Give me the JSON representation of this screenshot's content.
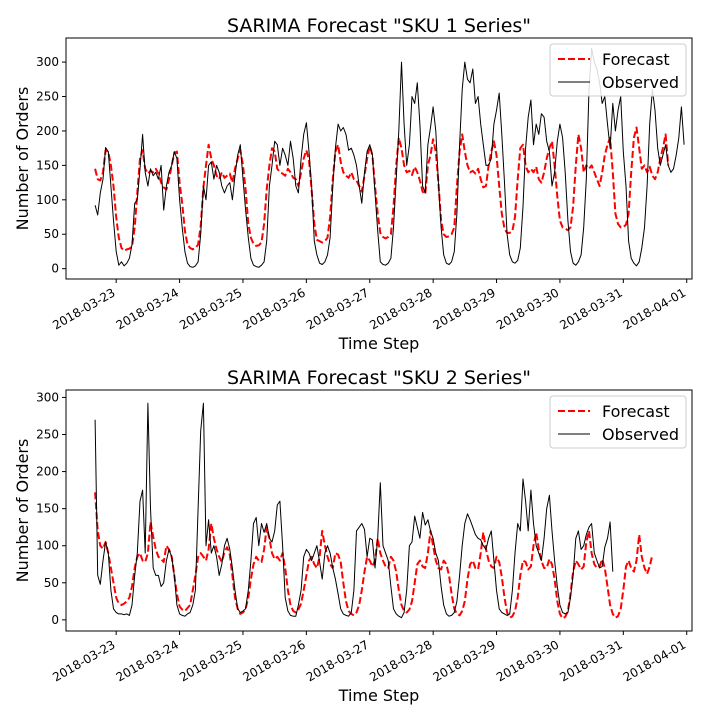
{
  "chart_data": [
    {
      "type": "line",
      "title": "SARIMA Forecast \"SKU 1 Series\"",
      "xlabel": "Time Step",
      "ylabel": "Number of Orders",
      "x_start": "2018-03-22T16:00",
      "x_step_hours": 1,
      "xlim": [
        "2018-03-22T05:00",
        "2018-04-01T02:00"
      ],
      "ylim": [
        -15,
        335
      ],
      "xticks": [
        "2018-03-23",
        "2018-03-24",
        "2018-03-25",
        "2018-03-26",
        "2018-03-27",
        "2018-03-28",
        "2018-03-29",
        "2018-03-30",
        "2018-03-31",
        "2018-04-01"
      ],
      "yticks": [
        0,
        50,
        100,
        150,
        200,
        250,
        300
      ],
      "legend": {
        "position": "top-right"
      },
      "series": [
        {
          "name": "Forecast",
          "color": "#ff0000",
          "style": "dashed",
          "values": [
            145,
            130,
            128,
            140,
            172,
            170,
            150,
            120,
            75,
            45,
            30,
            26,
            28,
            29,
            32,
            60,
            110,
            160,
            172,
            145,
            138,
            142,
            140,
            145,
            138,
            125,
            118,
            115,
            130,
            150,
            168,
            170,
            125,
            95,
            55,
            35,
            30,
            28,
            30,
            35,
            62,
            118,
            150,
            180,
            160,
            150,
            135,
            130,
            140,
            132,
            135,
            138,
            125,
            145,
            160,
            172,
            150,
            115,
            65,
            45,
            36,
            33,
            34,
            38,
            65,
            115,
            150,
            175,
            170,
            145,
            140,
            138,
            135,
            145,
            140,
            132,
            130,
            120,
            140,
            160,
            172,
            158,
            115,
            65,
            42,
            40,
            38,
            40,
            45,
            75,
            130,
            170,
            180,
            155,
            140,
            135,
            132,
            140,
            130,
            128,
            120,
            112,
            135,
            160,
            178,
            165,
            120,
            80,
            52,
            46,
            44,
            46,
            50,
            90,
            150,
            190,
            175,
            150,
            140,
            142,
            136,
            148,
            140,
            128,
            112,
            108,
            150,
            165,
            188,
            170,
            125,
            70,
            50,
            46,
            47,
            50,
            60,
            120,
            170,
            195,
            170,
            150,
            140,
            142,
            138,
            145,
            130,
            118,
            120,
            150,
            170,
            185,
            165,
            120,
            80,
            58,
            52,
            52,
            55,
            75,
            130,
            175,
            180,
            150,
            140,
            145,
            140,
            148,
            130,
            125,
            140,
            160,
            175,
            185,
            150,
            105,
            70,
            60,
            58,
            56,
            60,
            90,
            150,
            195,
            175,
            140,
            150,
            145,
            150,
            140,
            130,
            120,
            140,
            165,
            180,
            190,
            140,
            80,
            65,
            60,
            60,
            64,
            80,
            140,
            190,
            205,
            175,
            145,
            150,
            140,
            148,
            135,
            130,
            140,
            160,
            175,
            195,
            150
          ]
        },
        {
          "name": "Observed",
          "color": "#000000",
          "style": "solid",
          "values": [
            92,
            78,
            110,
            130,
            176,
            170,
            120,
            70,
            25,
            5,
            10,
            4,
            8,
            15,
            35,
            95,
            100,
            145,
            195,
            140,
            120,
            145,
            135,
            140,
            130,
            150,
            85,
            120,
            140,
            150,
            170,
            160,
            100,
            60,
            25,
            8,
            3,
            2,
            4,
            10,
            50,
            120,
            100,
            150,
            155,
            130,
            150,
            140,
            120,
            110,
            120,
            125,
            100,
            135,
            165,
            180,
            130,
            85,
            45,
            15,
            5,
            3,
            2,
            5,
            10,
            40,
            120,
            150,
            185,
            180,
            150,
            175,
            165,
            150,
            185,
            160,
            120,
            110,
            160,
            195,
            212,
            170,
            120,
            40,
            20,
            8,
            6,
            10,
            20,
            45,
            120,
            175,
            210,
            200,
            205,
            195,
            172,
            175,
            165,
            150,
            120,
            95,
            140,
            170,
            180,
            165,
            110,
            55,
            10,
            6,
            5,
            8,
            15,
            60,
            130,
            200,
            300,
            210,
            150,
            180,
            250,
            240,
            270,
            210,
            120,
            110,
            180,
            205,
            235,
            200,
            125,
            60,
            20,
            8,
            6,
            10,
            25,
            80,
            180,
            260,
            300,
            275,
            270,
            290,
            240,
            250,
            210,
            180,
            150,
            150,
            160,
            210,
            230,
            255,
            195,
            125,
            50,
            20,
            10,
            8,
            12,
            30,
            90,
            175,
            220,
            245,
            180,
            210,
            195,
            225,
            220,
            185,
            170,
            120,
            140,
            185,
            210,
            190,
            140,
            70,
            25,
            8,
            5,
            10,
            20,
            60,
            130,
            260,
            320,
            300,
            290,
            270,
            240,
            250,
            210,
            175,
            240,
            200,
            230,
            250,
            170,
            120,
            40,
            15,
            8,
            4,
            10,
            30,
            60,
            120,
            210,
            260,
            230,
            175,
            150,
            165,
            180,
            150,
            140,
            145,
            165,
            190,
            235,
            180
          ]
        }
      ]
    },
    {
      "type": "line",
      "title": "SARIMA Forecast \"SKU 2 Series\"",
      "xlabel": "Time Step",
      "ylabel": "Number of Orders",
      "x_start": "2018-03-22T16:00",
      "x_step_hours": 1,
      "xlim": [
        "2018-03-22T05:00",
        "2018-04-01T02:00"
      ],
      "ylim": [
        -15,
        310
      ],
      "xticks": [
        "2018-03-23",
        "2018-03-24",
        "2018-03-25",
        "2018-03-26",
        "2018-03-27",
        "2018-03-28",
        "2018-03-29",
        "2018-03-30",
        "2018-03-31",
        "2018-04-01"
      ],
      "yticks": [
        0,
        50,
        100,
        150,
        200,
        250,
        300
      ],
      "legend": {
        "position": "top-right"
      },
      "series": [
        {
          "name": "Forecast",
          "color": "#ff0000",
          "style": "dashed",
          "values": [
            172,
            120,
            100,
            96,
            105,
            90,
            70,
            50,
            30,
            22,
            20,
            22,
            25,
            30,
            45,
            70,
            85,
            90,
            80,
            78,
            90,
            132,
            112,
            95,
            85,
            82,
            78,
            100,
            95,
            85,
            60,
            35,
            18,
            14,
            12,
            16,
            20,
            40,
            60,
            85,
            90,
            85,
            80,
            95,
            130,
            110,
            95,
            85,
            78,
            92,
            98,
            88,
            60,
            30,
            15,
            8,
            10,
            15,
            30,
            55,
            75,
            85,
            80,
            78,
            95,
            125,
            110,
            90,
            82,
            85,
            80,
            90,
            70,
            40,
            20,
            12,
            10,
            14,
            22,
            40,
            60,
            80,
            85,
            75,
            70,
            85,
            120,
            100,
            85,
            75,
            70,
            90,
            88,
            78,
            50,
            25,
            12,
            8,
            6,
            10,
            20,
            40,
            65,
            85,
            80,
            72,
            80,
            110,
            90,
            80,
            72,
            70,
            85,
            80,
            65,
            40,
            20,
            12,
            10,
            14,
            25,
            50,
            75,
            80,
            72,
            70,
            90,
            120,
            100,
            80,
            70,
            68,
            80,
            75,
            60,
            35,
            15,
            8,
            6,
            12,
            25,
            55,
            75,
            80,
            70,
            68,
            90,
            118,
            95,
            80,
            72,
            70,
            85,
            78,
            58,
            30,
            10,
            3,
            5,
            12,
            30,
            60,
            80,
            78,
            68,
            72,
            100,
            118,
            95,
            80,
            70,
            70,
            82,
            75,
            55,
            25,
            8,
            2,
            4,
            12,
            35,
            65,
            80,
            75,
            68,
            72,
            105,
            120,
            90,
            75,
            70,
            72,
            82,
            70,
            45,
            20,
            8,
            3,
            5,
            15,
            40,
            72,
            80,
            70,
            65,
            80,
            115,
            85,
            70,
            62,
            72,
            88
          ]
        },
        {
          "name": "Observed",
          "color": "#000000",
          "style": "solid",
          "values": [
            270,
            60,
            48,
            80,
            105,
            90,
            40,
            15,
            10,
            8,
            8,
            7,
            8,
            6,
            20,
            60,
            90,
            160,
            175,
            90,
            292,
            150,
            70,
            60,
            60,
            45,
            50,
            80,
            95,
            85,
            60,
            20,
            8,
            6,
            5,
            8,
            10,
            20,
            40,
            150,
            255,
            292,
            100,
            135,
            90,
            100,
            85,
            60,
            75,
            100,
            110,
            95,
            70,
            40,
            15,
            10,
            12,
            15,
            40,
            80,
            130,
            138,
            100,
            130,
            118,
            130,
            110,
            105,
            120,
            155,
            160,
            100,
            30,
            12,
            6,
            5,
            5,
            20,
            40,
            85,
            95,
            90,
            80,
            90,
            100,
            78,
            55,
            90,
            100,
            90,
            70,
            55,
            35,
            15,
            8,
            6,
            5,
            10,
            40,
            120,
            125,
            130,
            122,
            85,
            110,
            108,
            70,
            110,
            185,
            100,
            90,
            80,
            45,
            15,
            8,
            5,
            3,
            10,
            40,
            100,
            105,
            140,
            125,
            110,
            145,
            128,
            135,
            120,
            110,
            90,
            80,
            45,
            20,
            8,
            5,
            6,
            10,
            25,
            60,
            100,
            130,
            143,
            135,
            125,
            115,
            110,
            108,
            100,
            95,
            110,
            120,
            80,
            40,
            15,
            10,
            8,
            6,
            8,
            40,
            90,
            130,
            120,
            190,
            160,
            120,
            175,
            130,
            100,
            90,
            80,
            110,
            150,
            168,
            120,
            80,
            45,
            20,
            10,
            8,
            10,
            30,
            60,
            110,
            120,
            95,
            100,
            115,
            125,
            130,
            90,
            80,
            70,
            72,
            98,
            110,
            132,
            65
          ]
        }
      ]
    }
  ]
}
